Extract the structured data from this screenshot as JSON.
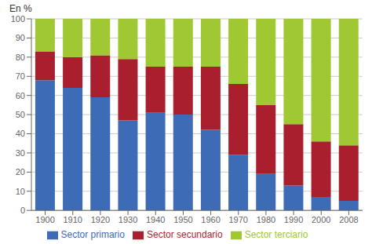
{
  "chart_data": {
    "type": "bar",
    "stacked": true,
    "y_label": "En %",
    "categories": [
      "1900",
      "1910",
      "1920",
      "1930",
      "1940",
      "1950",
      "1960",
      "1970",
      "1980",
      "1990",
      "2000",
      "2008"
    ],
    "series": [
      {
        "name": "Sector primario",
        "color": "#3d6bb5",
        "values": [
          68,
          64,
          59,
          47,
          51,
          50,
          42,
          29,
          19,
          13,
          7,
          5
        ]
      },
      {
        "name": "Sector secundario",
        "color": "#aa1f2e",
        "values": [
          15,
          16,
          22,
          32,
          24,
          25,
          33,
          37,
          36,
          32,
          29,
          29
        ]
      },
      {
        "name": "Sector terciario",
        "color": "#a0c832",
        "values": [
          17,
          20,
          19,
          21,
          25,
          25,
          25,
          34,
          45,
          55,
          64,
          66
        ]
      }
    ],
    "ylim": [
      0,
      100
    ],
    "yticks": [
      0,
      10,
      20,
      30,
      40,
      50,
      60,
      70,
      80,
      90,
      100
    ],
    "grid": true,
    "legend": "bottom"
  }
}
